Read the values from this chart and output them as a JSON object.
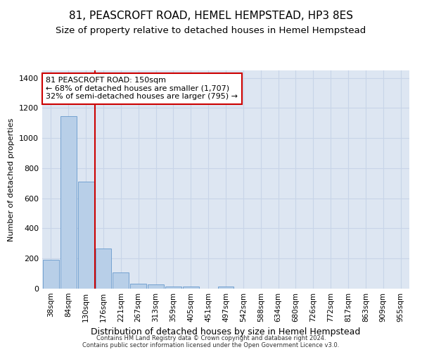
{
  "title": "81, PEASCROFT ROAD, HEMEL HEMPSTEAD, HP3 8ES",
  "subtitle": "Size of property relative to detached houses in Hemel Hempstead",
  "xlabel": "Distribution of detached houses by size in Hemel Hempstead",
  "ylabel": "Number of detached properties",
  "categories": [
    "38sqm",
    "84sqm",
    "130sqm",
    "176sqm",
    "221sqm",
    "267sqm",
    "313sqm",
    "359sqm",
    "405sqm",
    "451sqm",
    "497sqm",
    "542sqm",
    "588sqm",
    "634sqm",
    "680sqm",
    "726sqm",
    "772sqm",
    "817sqm",
    "863sqm",
    "909sqm",
    "955sqm"
  ],
  "values": [
    193,
    1145,
    712,
    268,
    108,
    35,
    28,
    14,
    13,
    0,
    13,
    0,
    0,
    0,
    0,
    0,
    0,
    0,
    0,
    0,
    0
  ],
  "bar_color": "#b8cfe8",
  "bar_edge_color": "#6699cc",
  "grid_color": "#c8d4e8",
  "bg_color": "#dde6f2",
  "vline_x": 2.5,
  "vline_color": "#cc0000",
  "annotation_text": "81 PEASCROFT ROAD: 150sqm\n← 68% of detached houses are smaller (1,707)\n32% of semi-detached houses are larger (795) →",
  "annotation_box_color": "#cc0000",
  "ylim": [
    0,
    1450
  ],
  "footer": "Contains HM Land Registry data © Crown copyright and database right 2024.\nContains public sector information licensed under the Open Government Licence v3.0.",
  "title_fontsize": 11,
  "subtitle_fontsize": 9.5,
  "ylabel_fontsize": 8,
  "xlabel_fontsize": 9,
  "tick_fontsize": 7.5,
  "annot_fontsize": 8,
  "footer_fontsize": 6
}
